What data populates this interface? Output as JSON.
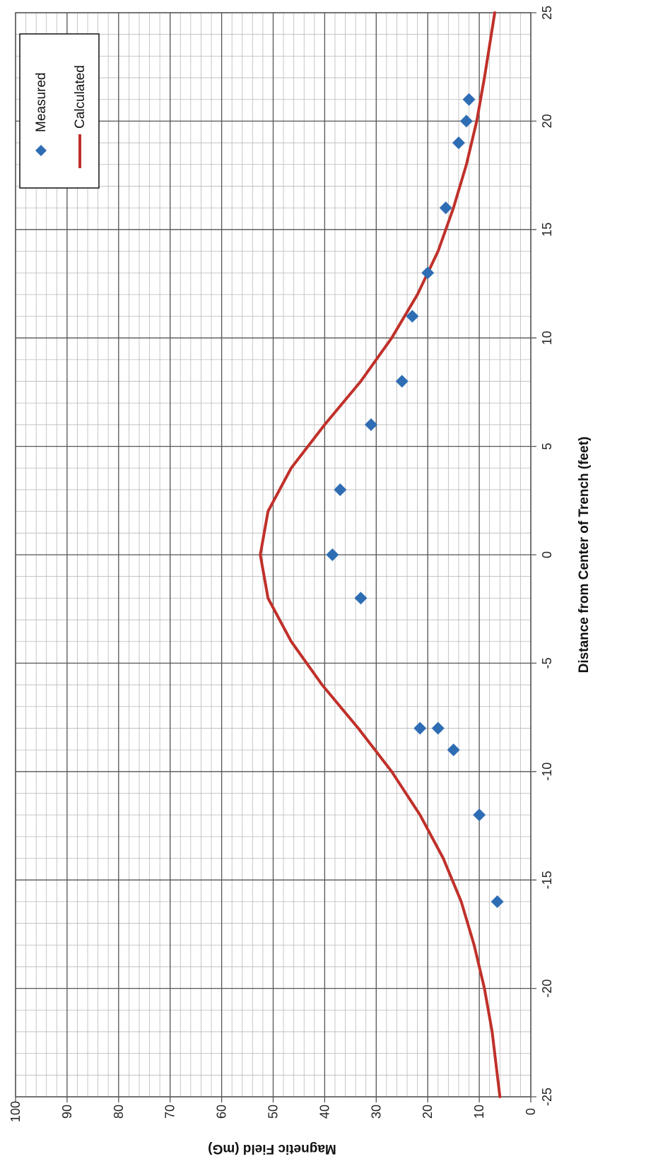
{
  "chart_data": {
    "type": "scatter",
    "orientation": "rotated-90-clockwise",
    "title": "",
    "xlabel": "Distance from Center of Trench (feet)",
    "ylabel": "Magnetic Field (mG)",
    "xlim": [
      -25,
      25
    ],
    "ylim": [
      0,
      100
    ],
    "x_major_ticks": [
      -25,
      -20,
      -15,
      -10,
      -5,
      0,
      5,
      10,
      15,
      20,
      25
    ],
    "x_tick_labels": [
      "-25",
      "-20",
      "-15",
      "-10",
      "-5",
      "0",
      "5",
      "10",
      "15",
      "20",
      "25"
    ],
    "y_major_ticks": [
      0,
      10,
      20,
      30,
      40,
      50,
      60,
      70,
      80,
      90,
      100
    ],
    "y_tick_labels": [
      "0",
      "10",
      "20",
      "30",
      "40",
      "50",
      "60",
      "70",
      "80",
      "90",
      "100"
    ],
    "grid": true,
    "legend_position": "top-right",
    "series": [
      {
        "name": "Measured",
        "type": "scatter",
        "marker": "diamond",
        "color": "#2E6DB4",
        "points": [
          {
            "x": -16,
            "y": 6.5
          },
          {
            "x": -12,
            "y": 10
          },
          {
            "x": -9,
            "y": 15
          },
          {
            "x": -8,
            "y": 18
          },
          {
            "x": -8,
            "y": 21.5
          },
          {
            "x": -2,
            "y": 33
          },
          {
            "x": 0,
            "y": 38.5
          },
          {
            "x": 3,
            "y": 37
          },
          {
            "x": 6,
            "y": 31
          },
          {
            "x": 8,
            "y": 25
          },
          {
            "x": 11,
            "y": 23
          },
          {
            "x": 13,
            "y": 20
          },
          {
            "x": 16,
            "y": 16.5
          },
          {
            "x": 19,
            "y": 14
          },
          {
            "x": 20,
            "y": 12.5
          },
          {
            "x": 21,
            "y": 12
          }
        ]
      },
      {
        "name": "Calculated",
        "type": "line",
        "color": "#C0302A",
        "points": [
          {
            "x": -25,
            "y": 6
          },
          {
            "x": -22,
            "y": 7.5
          },
          {
            "x": -20,
            "y": 9
          },
          {
            "x": -18,
            "y": 11
          },
          {
            "x": -16,
            "y": 13.5
          },
          {
            "x": -14,
            "y": 17
          },
          {
            "x": -12,
            "y": 21.5
          },
          {
            "x": -10,
            "y": 27
          },
          {
            "x": -8,
            "y": 33.5
          },
          {
            "x": -6,
            "y": 40.5
          },
          {
            "x": -4,
            "y": 46.5
          },
          {
            "x": -2,
            "y": 51
          },
          {
            "x": 0,
            "y": 52.5
          },
          {
            "x": 2,
            "y": 51
          },
          {
            "x": 4,
            "y": 46.5
          },
          {
            "x": 6,
            "y": 40
          },
          {
            "x": 8,
            "y": 33
          },
          {
            "x": 10,
            "y": 27
          },
          {
            "x": 12,
            "y": 22
          },
          {
            "x": 14,
            "y": 18
          },
          {
            "x": 16,
            "y": 15
          },
          {
            "x": 18,
            "y": 12.5
          },
          {
            "x": 20,
            "y": 10.5
          },
          {
            "x": 22,
            "y": 9
          },
          {
            "x": 25,
            "y": 7
          }
        ]
      }
    ]
  }
}
